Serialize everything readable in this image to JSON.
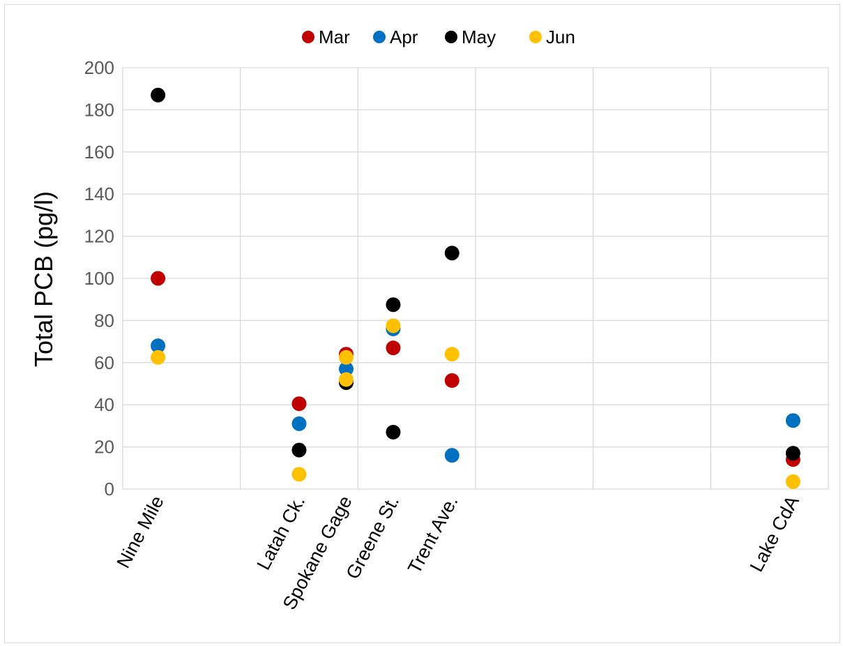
{
  "chart_data": {
    "type": "scatter",
    "title": "",
    "xlabel": "",
    "ylabel": "Total PCB (pg/l)",
    "ylim": [
      0,
      200
    ],
    "ytick_step": 20,
    "grid": true,
    "legend_position": "top-center",
    "x_range": [
      0,
      6
    ],
    "categories": [
      "Nine Mile",
      "Latah Ck.",
      "Spokane Gage",
      "Greene St.",
      "Trent Ave.",
      "Lake CdA"
    ],
    "category_positions": [
      0.3,
      1.5,
      1.9,
      2.3,
      2.8,
      5.7
    ],
    "series": [
      {
        "name": "Mar",
        "color": "#C00000",
        "values": [
          100,
          40.5,
          64,
          67,
          51.5,
          14
        ]
      },
      {
        "name": "Apr",
        "color": "#0070C0",
        "values": [
          68,
          31,
          57,
          76,
          16,
          32.5
        ]
      },
      {
        "name": "May",
        "color": "#000000",
        "values": [
          187,
          18.5,
          50.5,
          87.5,
          112,
          17
        ],
        "extra_points": [
          {
            "x": 2.3,
            "y": 27
          }
        ]
      },
      {
        "name": "Jun",
        "color": "#FFC000",
        "values": [
          62.5,
          7,
          52,
          77.5,
          64,
          3.5
        ],
        "extra_points": [
          {
            "x": 1.9,
            "y": 62.5
          }
        ]
      }
    ]
  }
}
